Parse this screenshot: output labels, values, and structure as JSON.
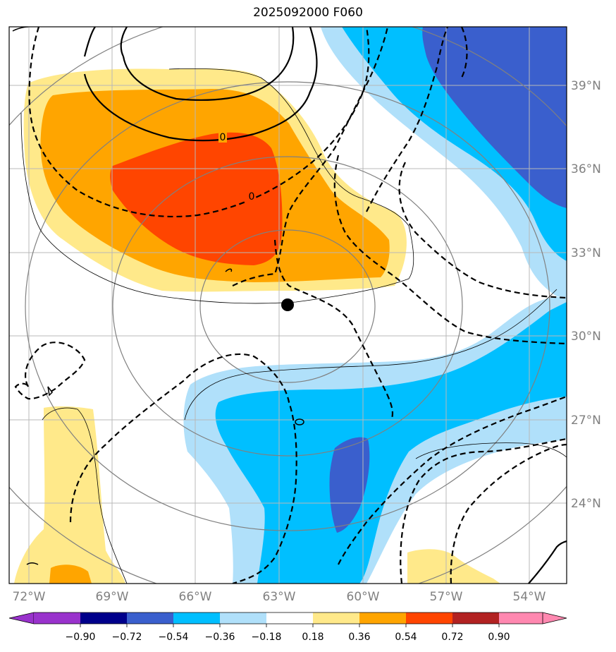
{
  "title": "2025092000 F060",
  "lon_labels": [
    "72°W",
    "69°W",
    "66°W",
    "63°W",
    "60°W",
    "57°W",
    "54°W"
  ],
  "lat_labels": [
    "39°N",
    "36°N",
    "33°N",
    "30°N",
    "27°N",
    "24°N"
  ],
  "contour_labels": [
    "0",
    "0",
    "0"
  ],
  "colorbar": {
    "ticks": [
      "−0.90",
      "−0.72",
      "−0.54",
      "−0.36",
      "−0.18",
      "0.18",
      "0.36",
      "0.54",
      "0.72",
      "0.90"
    ],
    "colors": [
      "#9932cc",
      "#00008b",
      "#3a5fcd",
      "#00bfff",
      "#b0e0fa",
      "#ffffff",
      "#ffe98a",
      "#ffa500",
      "#ff4500",
      "#b22222",
      "#ff88b0"
    ]
  },
  "storm_center": {
    "lat": 31.1,
    "lon": -62.6
  }
}
